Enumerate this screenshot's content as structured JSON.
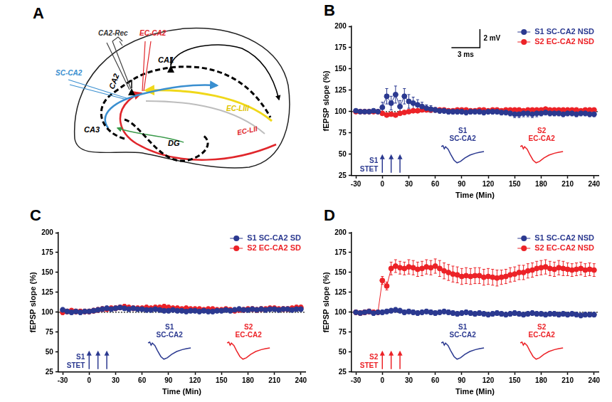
{
  "diagram": {
    "panel_label": "A",
    "labels": [
      {
        "text": "CA2-Rec",
        "color": "#333333"
      },
      {
        "text": "EC-CA2",
        "color": "#e0262b"
      },
      {
        "text": "SC-CA2",
        "color": "#3a8fd0"
      },
      {
        "text": "CA1",
        "color": "#000000"
      },
      {
        "text": "CA2",
        "color": "#000000"
      },
      {
        "text": "CA3",
        "color": "#000000"
      },
      {
        "text": "DG",
        "color": "#000000"
      },
      {
        "text": "EC-LIII",
        "color": "#e0c400"
      },
      {
        "text": "EC-LII",
        "color": "#e0262b"
      }
    ]
  },
  "chart_data": [
    {
      "panel_label": "B",
      "type": "line",
      "marker": "circle",
      "line_style": "solid",
      "x_label": "Time (Min)",
      "y_label": "fEPSP slope (%)",
      "xlim": [
        -35,
        245
      ],
      "xticks": [
        -30,
        0,
        30,
        60,
        90,
        120,
        150,
        180,
        210,
        240
      ],
      "ylim": [
        25,
        200
      ],
      "yticks": [
        25,
        50,
        75,
        100,
        125,
        150,
        175,
        200
      ],
      "grid": false,
      "legend": "top-right",
      "reference_line": 100,
      "x": [
        -30,
        -25,
        -20,
        -15,
        -10,
        -5,
        0,
        5,
        10,
        15,
        20,
        25,
        30,
        35,
        40,
        45,
        50,
        55,
        60,
        65,
        70,
        75,
        80,
        85,
        90,
        95,
        100,
        105,
        110,
        115,
        120,
        125,
        130,
        135,
        140,
        145,
        150,
        155,
        160,
        165,
        170,
        175,
        180,
        185,
        190,
        195,
        200,
        205,
        210,
        215,
        220,
        225,
        230,
        235,
        240
      ],
      "series": [
        {
          "name": "S1 SC-CA2 NSD",
          "color": "#2b3990",
          "values": [
            101,
            100,
            100,
            100,
            101,
            100,
            105,
            118,
            110,
            120,
            106,
            118,
            112,
            110,
            108,
            106,
            104,
            103,
            102,
            101,
            101,
            100,
            100,
            100,
            100,
            99,
            100,
            100,
            100,
            99,
            100,
            100,
            100,
            99,
            99,
            98,
            97,
            97,
            98,
            98,
            97,
            98,
            98,
            99,
            98,
            98,
            98,
            97,
            98,
            98,
            97,
            98,
            98,
            97,
            97
          ],
          "errors": [
            2,
            2,
            2,
            2,
            2,
            2,
            6,
            9,
            8,
            10,
            7,
            9,
            8,
            7,
            6,
            5,
            4,
            4,
            3,
            3,
            3,
            3,
            3,
            3,
            3,
            3,
            3,
            3,
            3,
            3,
            3,
            3,
            3,
            3,
            3,
            3,
            4,
            4,
            4,
            4,
            4,
            4,
            3,
            3,
            3,
            3,
            3,
            3,
            3,
            3,
            3,
            3,
            3,
            3,
            3
          ]
        },
        {
          "name": "S2 EC-CA2 NSD",
          "color": "#ec2227",
          "values": [
            100,
            100,
            100,
            100,
            100,
            100,
            98,
            96,
            97,
            96,
            98,
            99,
            100,
            101,
            101,
            102,
            102,
            102,
            102,
            102,
            102,
            101,
            101,
            102,
            102,
            102,
            101,
            101,
            102,
            102,
            101,
            102,
            102,
            101,
            102,
            102,
            102,
            102,
            101,
            102,
            102,
            102,
            102,
            103,
            102,
            102,
            102,
            102,
            102,
            102,
            102,
            101,
            102,
            102,
            102
          ],
          "errors": [
            2,
            2,
            2,
            2,
            2,
            2,
            2,
            2,
            2,
            2,
            2,
            2,
            2,
            2,
            2,
            2,
            2,
            2,
            2,
            2,
            2,
            2,
            2,
            2,
            2,
            2,
            2,
            2,
            2,
            2,
            2,
            2,
            2,
            2,
            2,
            2,
            2,
            2,
            2,
            2,
            2,
            2,
            2,
            2,
            2,
            2,
            2,
            2,
            2,
            2,
            2,
            2,
            2,
            2,
            2
          ]
        }
      ],
      "annotations": {
        "stimulation": {
          "label": [
            "S1",
            "STET"
          ],
          "color": "#2b3990",
          "times": [
            0,
            10,
            20
          ]
        },
        "traces": [
          {
            "label": [
              "S1",
              "SC-CA2"
            ],
            "color": "#2b3990"
          },
          {
            "label": [
              "S2",
              "EC-CA2"
            ],
            "color": "#ec2227"
          }
        ],
        "scale_bar": {
          "vertical": "2 mV",
          "horizontal": "3 ms"
        }
      }
    },
    {
      "panel_label": "C",
      "type": "line",
      "marker": "circle",
      "line_style": "solid",
      "x_label": "Time (Min)",
      "y_label": "fEPSP slope (%)",
      "xlim": [
        -35,
        245
      ],
      "xticks": [
        -30,
        0,
        30,
        60,
        90,
        120,
        150,
        180,
        210,
        240
      ],
      "ylim": [
        25,
        200
      ],
      "yticks": [
        25,
        50,
        75,
        100,
        125,
        150,
        175,
        200
      ],
      "grid": false,
      "legend": "top-right",
      "reference_line": 100,
      "x": [
        -30,
        -25,
        -20,
        -15,
        -10,
        -5,
        0,
        5,
        10,
        15,
        20,
        25,
        30,
        35,
        40,
        45,
        50,
        55,
        60,
        65,
        70,
        75,
        80,
        85,
        90,
        95,
        100,
        105,
        110,
        115,
        120,
        125,
        130,
        135,
        140,
        145,
        150,
        155,
        160,
        165,
        170,
        175,
        180,
        185,
        190,
        195,
        200,
        205,
        210,
        215,
        220,
        225,
        230,
        235,
        240
      ],
      "series": [
        {
          "name": "S1 SC-CA2 SD",
          "color": "#2b3990",
          "values": [
            103,
            101,
            100,
            101,
            100,
            101,
            101,
            102,
            103,
            104,
            105,
            104,
            105,
            106,
            105,
            104,
            105,
            104,
            104,
            103,
            103,
            104,
            103,
            102,
            102,
            103,
            102,
            102,
            101,
            102,
            102,
            101,
            102,
            101,
            101,
            102,
            102,
            103,
            102,
            103,
            104,
            103,
            103,
            104,
            103,
            104,
            103,
            104,
            104,
            103,
            104,
            104,
            103,
            104,
            104
          ],
          "errors": [
            3,
            3,
            3,
            3,
            3,
            3,
            3,
            3,
            3,
            3,
            3,
            3,
            3,
            3,
            3,
            3,
            3,
            3,
            3,
            3,
            3,
            3,
            3,
            3,
            3,
            3,
            3,
            3,
            3,
            3,
            3,
            3,
            3,
            3,
            3,
            3,
            3,
            3,
            3,
            3,
            3,
            3,
            3,
            3,
            3,
            3,
            3,
            3,
            3,
            3,
            3,
            3,
            3,
            3,
            3
          ]
        },
        {
          "name": "S2 EC-CA2 SD",
          "color": "#ec2227",
          "values": [
            100,
            101,
            102,
            101,
            101,
            101,
            101,
            102,
            103,
            104,
            104,
            105,
            105,
            106,
            107,
            106,
            105,
            105,
            105,
            106,
            105,
            106,
            106,
            107,
            106,
            105,
            105,
            104,
            105,
            104,
            104,
            104,
            103,
            104,
            104,
            103,
            103,
            104,
            103,
            102,
            103,
            103,
            104,
            104,
            103,
            104,
            104,
            105,
            105,
            104,
            104,
            104,
            105,
            106,
            106
          ],
          "errors": [
            3,
            3,
            3,
            3,
            3,
            3,
            3,
            3,
            3,
            3,
            3,
            3,
            3,
            3,
            3,
            3,
            3,
            3,
            3,
            3,
            3,
            3,
            3,
            3,
            3,
            3,
            3,
            3,
            3,
            3,
            3,
            3,
            3,
            3,
            3,
            3,
            3,
            3,
            3,
            3,
            3,
            3,
            3,
            3,
            3,
            3,
            3,
            3,
            3,
            3,
            3,
            3,
            3,
            3,
            3
          ]
        }
      ],
      "annotations": {
        "stimulation": {
          "label": [
            "S1",
            "STET"
          ],
          "color": "#2b3990",
          "times": [
            0,
            10,
            20
          ]
        },
        "traces": [
          {
            "label": [
              "S1",
              "SC-CA2"
            ],
            "color": "#2b3990"
          },
          {
            "label": [
              "S2",
              "EC-CA2"
            ],
            "color": "#ec2227"
          }
        ]
      }
    },
    {
      "panel_label": "D",
      "type": "line",
      "marker": "circle",
      "line_style": "solid",
      "x_label": "Time (Min)",
      "y_label": "fEPSP slope (%)",
      "xlim": [
        -35,
        245
      ],
      "xticks": [
        -30,
        0,
        30,
        60,
        90,
        120,
        150,
        180,
        210,
        240
      ],
      "ylim": [
        25,
        200
      ],
      "yticks": [
        25,
        50,
        75,
        100,
        125,
        150,
        175,
        200
      ],
      "grid": false,
      "legend": "top-right",
      "reference_line": 100,
      "x": [
        -30,
        -25,
        -20,
        -15,
        -10,
        -5,
        0,
        5,
        10,
        15,
        20,
        25,
        30,
        35,
        40,
        45,
        50,
        55,
        60,
        65,
        70,
        75,
        80,
        85,
        90,
        95,
        100,
        105,
        110,
        115,
        120,
        125,
        130,
        135,
        140,
        145,
        150,
        155,
        160,
        165,
        170,
        175,
        180,
        185,
        190,
        195,
        200,
        205,
        210,
        215,
        220,
        225,
        230,
        235,
        240
      ],
      "series": [
        {
          "name": "S1 SC-CA2 NSD",
          "color": "#2b3990",
          "values": [
            100,
            99,
            100,
            101,
            99,
            100,
            100,
            101,
            102,
            103,
            102,
            100,
            101,
            100,
            99,
            100,
            101,
            100,
            99,
            100,
            101,
            100,
            99,
            98,
            99,
            100,
            99,
            98,
            99,
            98,
            97,
            98,
            99,
            98,
            97,
            98,
            99,
            98,
            97,
            98,
            99,
            98,
            98,
            97,
            98,
            98,
            97,
            98,
            97,
            98,
            97,
            96,
            97,
            97,
            97
          ],
          "errors": [
            3,
            3,
            3,
            3,
            3,
            3,
            3,
            3,
            3,
            3,
            3,
            3,
            3,
            3,
            3,
            3,
            3,
            3,
            3,
            3,
            3,
            3,
            3,
            3,
            3,
            3,
            3,
            3,
            3,
            3,
            3,
            3,
            3,
            3,
            3,
            3,
            3,
            3,
            3,
            3,
            3,
            3,
            3,
            3,
            3,
            3,
            3,
            3,
            3,
            3,
            3,
            3,
            3,
            3,
            3
          ]
        },
        {
          "name": "S2 EC-CA2 NSD",
          "color": "#ec2227",
          "values": [
            100,
            99,
            100,
            101,
            100,
            100,
            140,
            133,
            155,
            158,
            156,
            155,
            157,
            156,
            154,
            155,
            157,
            156,
            158,
            155,
            152,
            150,
            148,
            147,
            145,
            146,
            145,
            146,
            146,
            144,
            145,
            144,
            143,
            144,
            145,
            147,
            148,
            150,
            150,
            152,
            153,
            155,
            156,
            157,
            155,
            154,
            156,
            155,
            154,
            153,
            154,
            155,
            153,
            154,
            153
          ],
          "errors": [
            3,
            3,
            3,
            3,
            3,
            3,
            5,
            5,
            8,
            8,
            8,
            8,
            9,
            9,
            9,
            9,
            9,
            9,
            9,
            10,
            10,
            10,
            10,
            10,
            10,
            10,
            10,
            10,
            10,
            10,
            10,
            10,
            10,
            9,
            9,
            9,
            9,
            9,
            9,
            9,
            9,
            9,
            9,
            9,
            9,
            9,
            9,
            9,
            8,
            8,
            8,
            8,
            8,
            8,
            8
          ]
        }
      ],
      "annotations": {
        "stimulation": {
          "label": [
            "S2",
            "STET"
          ],
          "color": "#ec2227",
          "times": [
            0,
            10,
            20
          ]
        },
        "traces": [
          {
            "label": [
              "S1",
              "SC-CA2"
            ],
            "color": "#2b3990"
          },
          {
            "label": [
              "S2",
              "EC-CA2"
            ],
            "color": "#ec2227"
          }
        ]
      }
    }
  ]
}
